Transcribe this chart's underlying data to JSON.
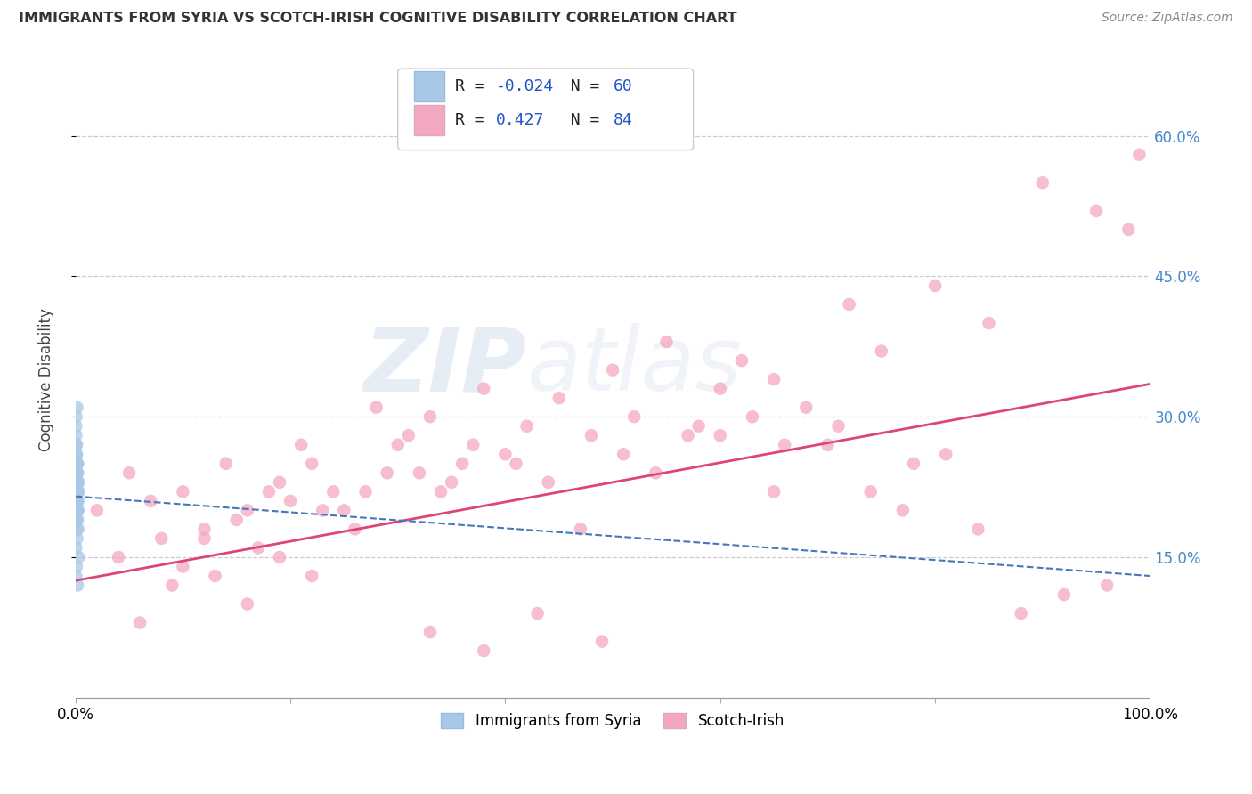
{
  "title": "IMMIGRANTS FROM SYRIA VS SCOTCH-IRISH COGNITIVE DISABILITY CORRELATION CHART",
  "source": "Source: ZipAtlas.com",
  "ylabel": "Cognitive Disability",
  "legend_label1": "Immigrants from Syria",
  "legend_label2": "Scotch-Irish",
  "R1": -0.024,
  "N1": 60,
  "R2": 0.427,
  "N2": 84,
  "color1": "#a8c8e8",
  "color2": "#f4a8bf",
  "color1_edge": "#7aaad0",
  "color2_edge": "#e87898",
  "trendline1_color": "#4477bb",
  "trendline2_color": "#dd4477",
  "watermark_zip": "ZIP",
  "watermark_atlas": "atlas",
  "xmin": 0.0,
  "xmax": 1.0,
  "ymin": 0.0,
  "ymax": 0.68,
  "yticks": [
    0.15,
    0.3,
    0.45,
    0.6
  ],
  "ytick_labels": [
    "15.0%",
    "30.0%",
    "45.0%",
    "60.0%"
  ],
  "blue_trend_start": 0.215,
  "blue_trend_end": 0.13,
  "pink_trend_start": 0.125,
  "pink_trend_end": 0.335,
  "syria_x": [
    0.0005,
    0.001,
    0.0008,
    0.0015,
    0.001,
    0.002,
    0.0012,
    0.0008,
    0.002,
    0.0018,
    0.003,
    0.0008,
    0.001,
    0.0007,
    0.0014,
    0.001,
    0.0006,
    0.002,
    0.001,
    0.0005,
    0.0015,
    0.0007,
    0.001,
    0.0025,
    0.0006,
    0.0015,
    0.001,
    0.002,
    0.0007,
    0.001,
    0.003,
    0.0006,
    0.0015,
    0.001,
    0.0007,
    0.002,
    0.001,
    0.0015,
    0.0006,
    0.0025,
    0.001,
    0.0007,
    0.0015,
    0.002,
    0.001,
    0.0006,
    0.0015,
    0.001,
    0.002,
    0.0006,
    0.003,
    0.001,
    0.0006,
    0.0015,
    0.0025,
    0.001,
    0.0006,
    0.002,
    0.0015,
    0.001
  ],
  "syria_y": [
    0.24,
    0.26,
    0.21,
    0.23,
    0.22,
    0.2,
    0.25,
    0.19,
    0.24,
    0.22,
    0.23,
    0.21,
    0.27,
    0.2,
    0.22,
    0.21,
    0.23,
    0.24,
    0.19,
    0.25,
    0.22,
    0.2,
    0.26,
    0.21,
    0.24,
    0.23,
    0.22,
    0.25,
    0.2,
    0.21,
    0.22,
    0.28,
    0.23,
    0.24,
    0.19,
    0.22,
    0.27,
    0.21,
    0.23,
    0.2,
    0.18,
    0.3,
    0.22,
    0.25,
    0.24,
    0.21,
    0.17,
    0.23,
    0.19,
    0.16,
    0.15,
    0.14,
    0.29,
    0.31,
    0.18,
    0.2,
    0.13,
    0.12,
    0.22,
    0.24
  ],
  "scotch_x": [
    0.02,
    0.05,
    0.07,
    0.1,
    0.12,
    0.14,
    0.16,
    0.19,
    0.21,
    0.24,
    0.1,
    0.12,
    0.15,
    0.17,
    0.2,
    0.22,
    0.25,
    0.27,
    0.3,
    0.32,
    0.35,
    0.28,
    0.31,
    0.33,
    0.36,
    0.38,
    0.4,
    0.42,
    0.45,
    0.48,
    0.5,
    0.52,
    0.55,
    0.58,
    0.6,
    0.62,
    0.65,
    0.68,
    0.7,
    0.72,
    0.75,
    0.78,
    0.8,
    0.85,
    0.6,
    0.65,
    0.9,
    0.95,
    0.98,
    0.99,
    0.04,
    0.08,
    0.13,
    0.18,
    0.23,
    0.26,
    0.29,
    0.34,
    0.37,
    0.41,
    0.44,
    0.47,
    0.51,
    0.54,
    0.57,
    0.63,
    0.66,
    0.71,
    0.74,
    0.77,
    0.81,
    0.84,
    0.88,
    0.92,
    0.96,
    0.06,
    0.09,
    0.16,
    0.19,
    0.22,
    0.33,
    0.38,
    0.43,
    0.49
  ],
  "scotch_y": [
    0.2,
    0.24,
    0.21,
    0.22,
    0.18,
    0.25,
    0.2,
    0.23,
    0.27,
    0.22,
    0.14,
    0.17,
    0.19,
    0.16,
    0.21,
    0.25,
    0.2,
    0.22,
    0.27,
    0.24,
    0.23,
    0.31,
    0.28,
    0.3,
    0.25,
    0.33,
    0.26,
    0.29,
    0.32,
    0.28,
    0.35,
    0.3,
    0.38,
    0.29,
    0.33,
    0.36,
    0.34,
    0.31,
    0.27,
    0.42,
    0.37,
    0.25,
    0.44,
    0.4,
    0.28,
    0.22,
    0.55,
    0.52,
    0.5,
    0.58,
    0.15,
    0.17,
    0.13,
    0.22,
    0.2,
    0.18,
    0.24,
    0.22,
    0.27,
    0.25,
    0.23,
    0.18,
    0.26,
    0.24,
    0.28,
    0.3,
    0.27,
    0.29,
    0.22,
    0.2,
    0.26,
    0.18,
    0.09,
    0.11,
    0.12,
    0.08,
    0.12,
    0.1,
    0.15,
    0.13,
    0.07,
    0.05,
    0.09,
    0.06
  ]
}
